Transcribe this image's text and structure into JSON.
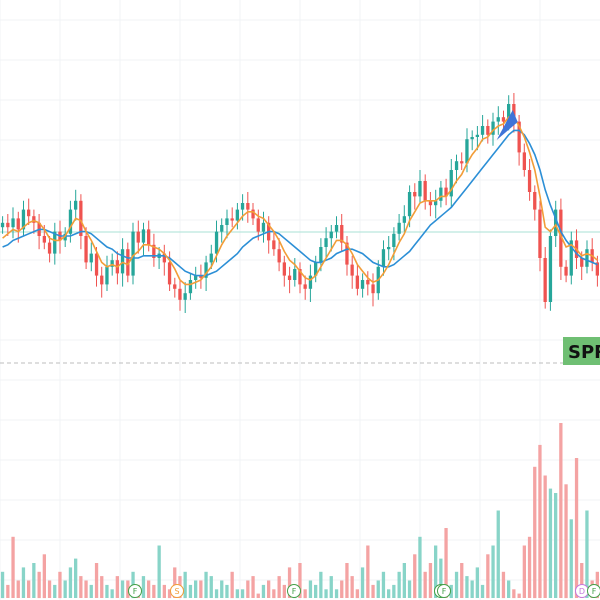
{
  "chart_data": {
    "type": "candlestick",
    "title": "",
    "xlabel": "",
    "ylabel": "",
    "grid": true,
    "signal_label": "SPR",
    "colors": {
      "up": "#26a69a",
      "down": "#ef5350",
      "vol_up": "#88d4c8",
      "vol_down": "#f4a3a3",
      "ma_fast": "#f29d38",
      "ma_slow": "#2c8fd6",
      "signal_bg": "#6fbf73",
      "marker_up": "#3f74d8",
      "grid": "#f0f3f6",
      "level": "#a9e2d5",
      "dashed": "#bdbdbd"
    },
    "price_close": [
      256,
      254,
      258,
      253,
      262,
      259,
      256,
      250,
      247,
      242,
      252,
      248,
      251,
      262,
      266,
      250,
      238,
      242,
      232,
      228,
      236,
      239,
      233,
      244,
      232,
      252,
      247,
      253,
      246,
      240,
      242,
      238,
      228,
      226,
      221,
      224,
      230,
      232,
      231,
      238,
      242,
      252,
      255,
      258,
      257,
      262,
      265,
      262,
      258,
      252,
      256,
      248,
      244,
      238,
      232,
      230,
      235,
      228,
      226,
      232,
      238,
      245,
      249,
      252,
      255,
      247,
      237,
      232,
      226,
      230,
      228,
      224,
      236,
      244,
      245,
      251,
      256,
      259,
      270,
      268,
      275,
      266,
      264,
      266,
      272,
      268,
      280,
      284,
      283,
      294,
      295,
      296,
      300,
      296,
      302,
      304,
      302,
      310,
      302,
      288,
      280,
      270,
      262,
      240,
      220,
      250,
      262,
      236,
      232,
      248,
      240,
      236,
      244,
      238,
      232
    ],
    "ma_fast": [
      249,
      251,
      253,
      252,
      254,
      256,
      257,
      256,
      253,
      249,
      248,
      248,
      250,
      254,
      258,
      257,
      252,
      248,
      243,
      238,
      236,
      237,
      236,
      238,
      237,
      241,
      243,
      246,
      246,
      245,
      244,
      242,
      239,
      235,
      230,
      228,
      228,
      229,
      230,
      233,
      236,
      241,
      246,
      250,
      253,
      256,
      259,
      261,
      261,
      259,
      258,
      255,
      252,
      248,
      243,
      239,
      237,
      234,
      231,
      230,
      232,
      236,
      240,
      244,
      248,
      248,
      246,
      242,
      237,
      234,
      231,
      229,
      230,
      233,
      237,
      242,
      247,
      251,
      257,
      261,
      265,
      266,
      266,
      266,
      268,
      268,
      271,
      275,
      278,
      283,
      287,
      290,
      294,
      295,
      298,
      300,
      301,
      304,
      304,
      300,
      295,
      288,
      280,
      268,
      254,
      252,
      255,
      250,
      245,
      246,
      244,
      241,
      242,
      241,
      239
    ],
    "ma_slow": [
      245,
      246,
      248,
      249,
      250,
      251,
      252,
      253,
      253,
      252,
      251,
      250,
      250,
      250,
      251,
      252,
      252,
      251,
      249,
      247,
      245,
      244,
      242,
      241,
      240,
      240,
      240,
      241,
      241,
      241,
      241,
      241,
      240,
      238,
      236,
      234,
      233,
      232,
      232,
      232,
      233,
      234,
      236,
      238,
      240,
      242,
      245,
      247,
      249,
      250,
      251,
      252,
      252,
      251,
      249,
      247,
      245,
      243,
      241,
      239,
      238,
      238,
      239,
      240,
      242,
      243,
      244,
      244,
      243,
      242,
      240,
      238,
      237,
      236,
      236,
      237,
      239,
      241,
      243,
      246,
      249,
      252,
      255,
      257,
      259,
      261,
      263,
      266,
      269,
      272,
      275,
      278,
      281,
      284,
      287,
      290,
      293,
      296,
      298,
      298,
      296,
      292,
      287,
      280,
      271,
      264,
      258,
      252,
      248,
      245,
      242,
      240,
      239,
      238,
      237
    ],
    "volume": [
      6,
      3,
      14,
      4,
      7,
      4,
      8,
      6,
      10,
      4,
      3,
      6,
      4,
      7,
      9,
      5,
      4,
      3,
      8,
      5,
      3,
      2,
      5,
      4,
      4,
      6,
      3,
      5,
      4,
      3,
      12,
      3,
      2,
      7,
      5,
      6,
      3,
      4,
      4,
      6,
      5,
      2,
      4,
      3,
      6,
      2,
      2,
      4,
      5,
      1,
      3,
      4,
      2,
      5,
      3,
      7,
      2,
      8,
      2,
      4,
      3,
      6,
      2,
      5,
      2,
      4,
      8,
      5,
      2,
      7,
      12,
      3,
      4,
      6,
      2,
      3,
      6,
      8,
      4,
      10,
      14,
      6,
      8,
      12,
      9,
      16,
      3,
      6,
      8,
      5,
      4,
      7,
      3,
      10,
      12,
      20,
      6,
      4,
      2,
      1,
      12,
      14,
      30,
      35,
      28,
      25,
      24,
      40,
      26,
      18,
      32,
      8,
      20,
      4,
      6
    ],
    "volume_up": [
      true,
      false,
      false,
      false,
      true,
      false,
      true,
      false,
      false,
      false,
      true,
      false,
      true,
      true,
      true,
      false,
      false,
      true,
      false,
      false,
      true,
      true,
      false,
      true,
      false,
      true,
      false,
      true,
      false,
      false,
      true,
      false,
      false,
      false,
      false,
      true,
      true,
      true,
      false,
      true,
      true,
      true,
      true,
      true,
      false,
      true,
      true,
      false,
      false,
      false,
      true,
      false,
      false,
      false,
      false,
      false,
      true,
      false,
      false,
      true,
      true,
      true,
      true,
      true,
      true,
      false,
      false,
      false,
      false,
      true,
      false,
      false,
      true,
      true,
      true,
      true,
      true,
      true,
      true,
      false,
      true,
      false,
      false,
      true,
      true,
      false,
      true,
      true,
      false,
      true,
      true,
      true,
      true,
      false,
      true,
      true,
      false,
      true,
      false,
      false,
      false,
      false,
      false,
      false,
      false,
      true,
      true,
      false,
      false,
      true,
      false,
      false,
      true,
      false,
      false
    ],
    "events": [
      "F",
      "S",
      "F",
      "F",
      "F",
      "D",
      "F"
    ]
  }
}
